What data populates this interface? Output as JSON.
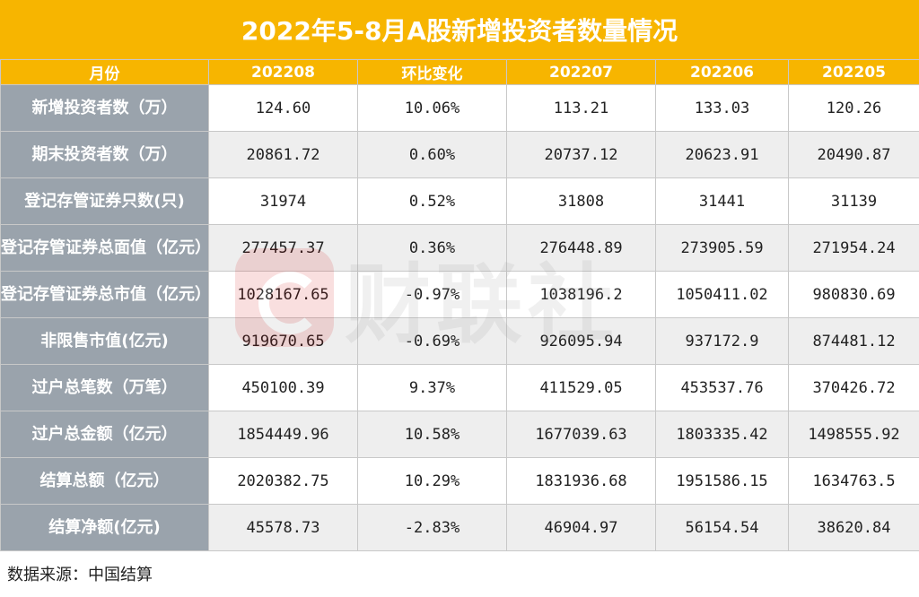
{
  "title": "2022年5-8月A股新增投资者数量情况",
  "headers": [
    "月份",
    "202208",
    "环比变化",
    "202207",
    "202206",
    "202205"
  ],
  "rows": [
    {
      "label": "新增投资者数（万）",
      "values": [
        "124.60",
        "10.06%",
        "113.21",
        "133.03",
        "120.26"
      ]
    },
    {
      "label": "期末投资者数（万）",
      "values": [
        "20861.72",
        "0.60%",
        "20737.12",
        "20623.91",
        "20490.87"
      ]
    },
    {
      "label": "登记存管证券只数(只)",
      "values": [
        "31974",
        "0.52%",
        "31808",
        "31441",
        "31139"
      ]
    },
    {
      "label": "登记存管证券总面值（亿元）",
      "values": [
        "277457.37",
        "0.36%",
        "276448.89",
        "273905.59",
        "271954.24"
      ]
    },
    {
      "label": "登记存管证券总市值（亿元）",
      "values": [
        "1028167.65",
        "-0.97%",
        "1038196.2",
        "1050411.02",
        "980830.69"
      ]
    },
    {
      "label": "非限售市值(亿元)",
      "values": [
        "919670.65",
        "-0.69%",
        "926095.94",
        "937172.9",
        "874481.12"
      ]
    },
    {
      "label": "过户总笔数（万笔）",
      "values": [
        "450100.39",
        "9.37%",
        "411529.05",
        "453537.76",
        "370426.72"
      ]
    },
    {
      "label": "过户总金额（亿元）",
      "values": [
        "1854449.96",
        "10.58%",
        "1677039.63",
        "1803335.42",
        "1498555.92"
      ]
    },
    {
      "label": "结算总额（亿元）",
      "values": [
        "2020382.75",
        "10.29%",
        "1831936.68",
        "1951586.15",
        "1634763.5"
      ]
    },
    {
      "label": "结算净额(亿元)",
      "values": [
        "45578.73",
        "-2.83%",
        "46904.97",
        "56154.54",
        "38620.84"
      ]
    }
  ],
  "source": "数据来源：中国结算",
  "watermark": "财联社",
  "colors": {
    "header": "#f7b500",
    "row_label_bg": "#9aa3ac",
    "stripe": "#eeeeee",
    "watermark_logo": "#d40000"
  }
}
